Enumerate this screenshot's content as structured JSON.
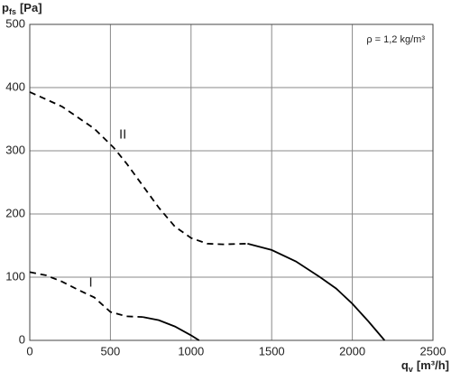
{
  "chart_data": {
    "type": "line",
    "y_label": {
      "symbol": "p",
      "subscript": "fs",
      "unit": "[Pa]"
    },
    "x_label": {
      "symbol": "q",
      "subscript": "v",
      "unit": "[m³/h]"
    },
    "annotation": "ρ = 1,2 kg/m³",
    "xlim": [
      0,
      2500
    ],
    "xticks": [
      0,
      500,
      1000,
      1500,
      2000,
      2500
    ],
    "ylim": [
      0,
      500
    ],
    "yticks": [
      0,
      100,
      200,
      300,
      400,
      500
    ],
    "grid": true,
    "series": [
      {
        "name": "II",
        "color": "#000000",
        "parts": [
          {
            "style": "dashed",
            "x": [
              0,
              200,
              400,
              520,
              600,
              700,
              800,
              900,
              1000,
              1100,
              1200,
              1350
            ],
            "values": [
              393,
              370,
              335,
              305,
              280,
              245,
              210,
              180,
              162,
              153,
              152,
              153
            ]
          },
          {
            "style": "solid",
            "x": [
              1350,
              1500,
              1650,
              1800,
              1900,
              2000,
              2100,
              2200
            ],
            "values": [
              153,
              143,
              125,
              100,
              82,
              58,
              30,
              0
            ]
          }
        ]
      },
      {
        "name": "I",
        "color": "#000000",
        "parts": [
          {
            "style": "dashed",
            "x": [
              0,
              100,
              200,
              300,
              400,
              500,
              600,
              700
            ],
            "values": [
              108,
              103,
              93,
              80,
              68,
              45,
              38,
              37
            ]
          },
          {
            "style": "solid",
            "x": [
              700,
              800,
              900,
              1000,
              1050
            ],
            "values": [
              37,
              32,
              22,
              8,
              0
            ]
          }
        ]
      }
    ]
  }
}
